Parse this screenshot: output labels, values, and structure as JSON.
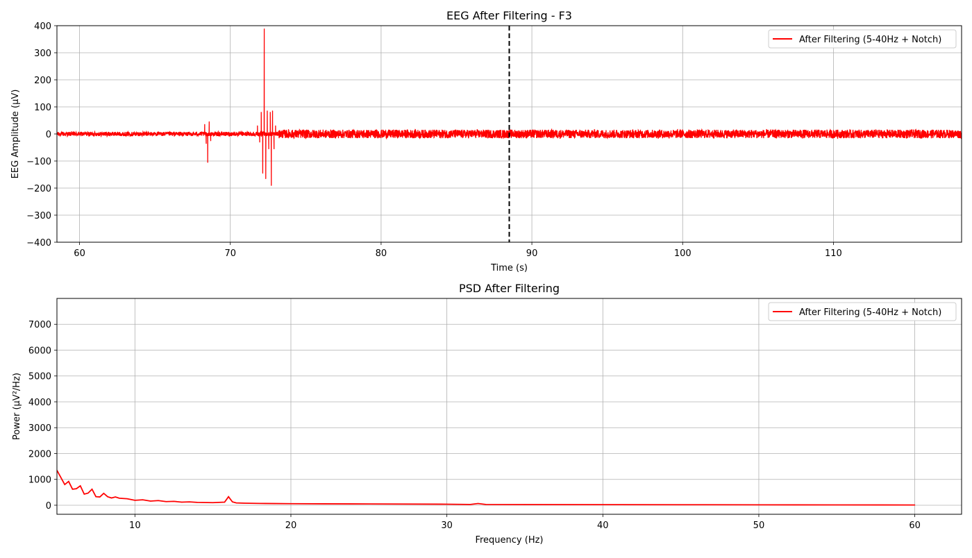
{
  "chart_data": [
    {
      "type": "line",
      "title": "EEG After Filtering - F3",
      "xlabel": "Time (s)",
      "ylabel": "EEG Amplitude (µV)",
      "xlim": [
        58.5,
        118.5
      ],
      "ylim": [
        -400,
        400
      ],
      "xticks": [
        60,
        70,
        80,
        90,
        100,
        110
      ],
      "yticks": [
        -400,
        -300,
        -200,
        -100,
        0,
        100,
        200,
        300,
        400
      ],
      "grid": true,
      "legend_position": "top-right",
      "vline": {
        "x": 88.5,
        "style": "dashed",
        "color": "#000000"
      },
      "series": [
        {
          "name": "After Filtering (5-40Hz + Notch)",
          "color": "#ff0000",
          "baseline_noise": [
            {
              "from": 58.5,
              "to": 73.2,
              "amplitude": 8
            },
            {
              "from": 73.2,
              "to": 118.5,
              "amplitude": 16
            }
          ],
          "bursts": [
            {
              "x": 68.3,
              "y": 35
            },
            {
              "x": 68.4,
              "y": -35
            },
            {
              "x": 68.5,
              "y": -105
            },
            {
              "x": 68.6,
              "y": 45
            },
            {
              "x": 68.7,
              "y": -25
            },
            {
              "x": 71.8,
              "y": 30
            },
            {
              "x": 71.95,
              "y": -30
            },
            {
              "x": 72.05,
              "y": 80
            },
            {
              "x": 72.15,
              "y": -145
            },
            {
              "x": 72.25,
              "y": 388
            },
            {
              "x": 72.35,
              "y": -165
            },
            {
              "x": 72.45,
              "y": 85
            },
            {
              "x": 72.55,
              "y": -55
            },
            {
              "x": 72.65,
              "y": 80
            },
            {
              "x": 72.72,
              "y": -190
            },
            {
              "x": 72.8,
              "y": 85
            },
            {
              "x": 72.9,
              "y": -55
            },
            {
              "x": 73.0,
              "y": 30
            }
          ]
        }
      ]
    },
    {
      "type": "line",
      "title": "PSD After Filtering",
      "xlabel": "Frequency (Hz)",
      "ylabel": "Power (µV²/Hz)",
      "xlim": [
        5,
        63
      ],
      "ylim": [
        -350,
        8000
      ],
      "xticks": [
        10,
        20,
        30,
        40,
        50,
        60
      ],
      "yticks": [
        0,
        1000,
        2000,
        3000,
        4000,
        5000,
        6000,
        7000
      ],
      "grid": true,
      "legend_position": "top-right",
      "series": [
        {
          "name": "After Filtering (5-40Hz + Notch)",
          "color": "#ff0000",
          "x": [
            5,
            5.5,
            5.75,
            6,
            6.25,
            6.5,
            6.75,
            7,
            7.25,
            7.5,
            7.75,
            8,
            8.25,
            8.5,
            8.75,
            9,
            9.5,
            10,
            10.5,
            11,
            11.5,
            12,
            12.5,
            13,
            13.5,
            14,
            15,
            15.75,
            16,
            16.25,
            16.5,
            17,
            18,
            19,
            20,
            22,
            25,
            30,
            31.5,
            32,
            32.5,
            35,
            40,
            45,
            50,
            55,
            60
          ],
          "y": [
            1350,
            800,
            920,
            620,
            640,
            750,
            430,
            470,
            620,
            330,
            320,
            460,
            330,
            280,
            320,
            270,
            250,
            190,
            210,
            160,
            180,
            140,
            150,
            120,
            130,
            110,
            100,
            120,
            330,
            130,
            90,
            80,
            70,
            65,
            60,
            55,
            50,
            40,
            30,
            65,
            30,
            25,
            22,
            20,
            15,
            12,
            10
          ]
        }
      ]
    }
  ]
}
